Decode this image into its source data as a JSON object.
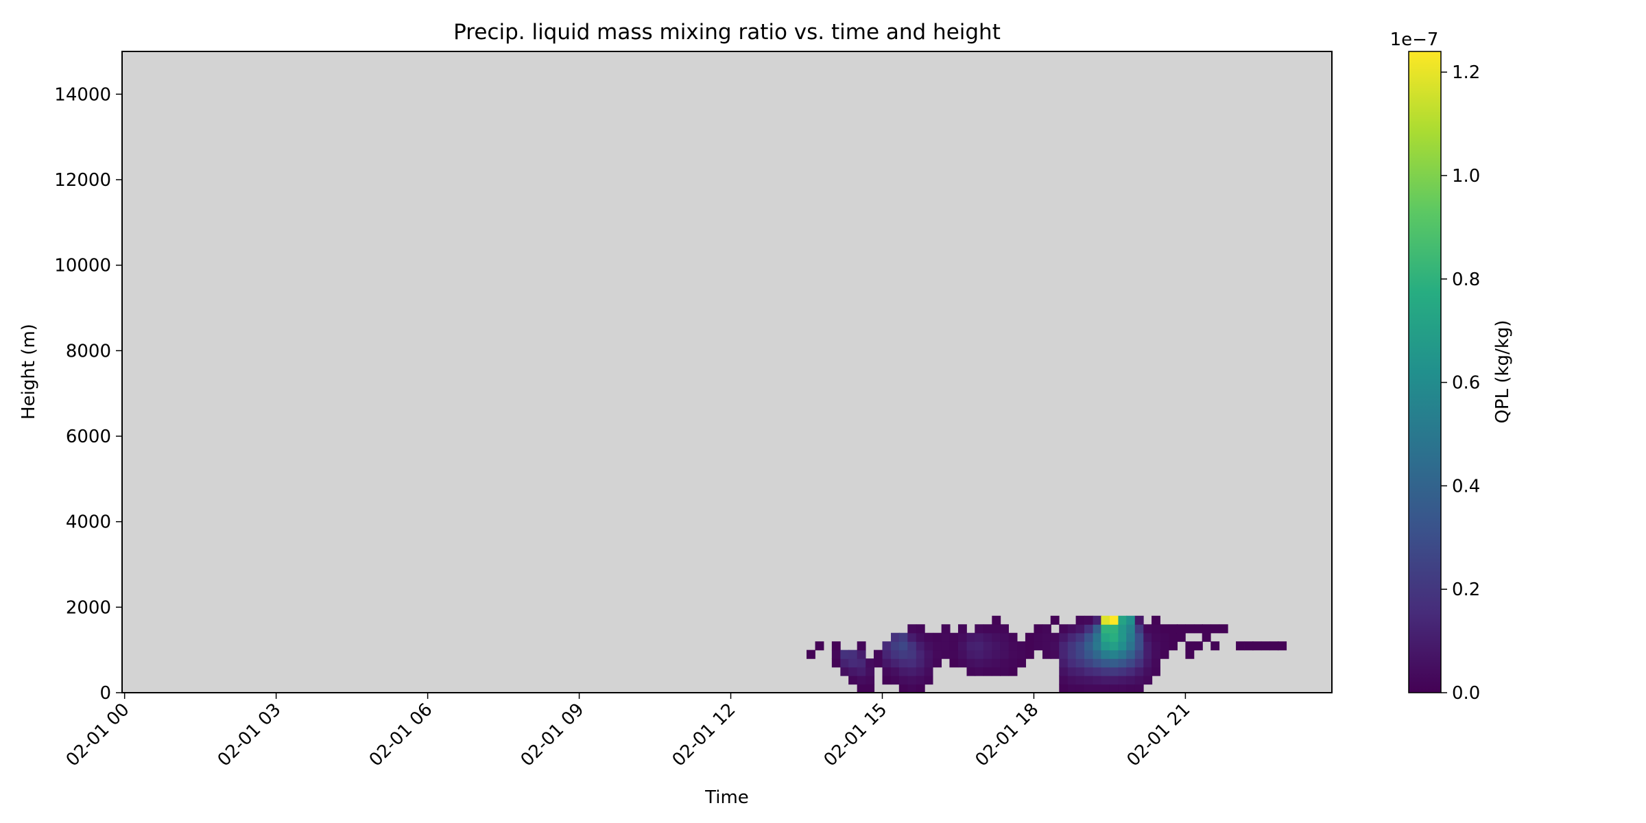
{
  "chart_data": {
    "type": "heatmap",
    "title": "Precip. liquid mass mixing ratio vs. time and height",
    "xlabel": "Time",
    "ylabel": "Height (m)",
    "x_ticks": [
      "02-01 00",
      "02-01 03",
      "02-01 06",
      "02-01 09",
      "02-01 12",
      "02-01 15",
      "02-01 18",
      "02-01 21"
    ],
    "x_tick_hours": [
      0,
      3,
      6,
      9,
      12,
      15,
      18,
      21
    ],
    "x_range_hours": [
      -0.05,
      23.9
    ],
    "y_ticks": [
      0,
      2000,
      4000,
      6000,
      8000,
      10000,
      12000,
      14000
    ],
    "ylim": [
      0,
      15000
    ],
    "background_color": "#d3d3d3",
    "grid": false,
    "colorbar": {
      "label": "QPL (kg/kg)",
      "colormap": "viridis",
      "range": [
        0,
        1.24e-07
      ],
      "ticks": [
        0,
        0.2,
        0.4,
        0.6,
        0.8,
        1.0,
        1.2
      ],
      "tick_labels": [
        "0.0",
        "0.2",
        "0.4",
        "0.6",
        "0.8",
        "1.0",
        "1.2"
      ],
      "offset_text": "1e−7"
    },
    "cell_size": {
      "hours": 0.1667,
      "meters": 200
    },
    "units": {
      "hours": "h",
      "height": "m",
      "value": "1e-7 kg/kg"
    },
    "cells": [
      [
        13.5,
        800,
        0.01
      ],
      [
        13.67,
        1000,
        0.01
      ],
      [
        14.0,
        600,
        0.01
      ],
      [
        14.0,
        800,
        0.02
      ],
      [
        14.0,
        1000,
        0.01
      ],
      [
        14.17,
        400,
        0.05
      ],
      [
        14.17,
        600,
        0.12
      ],
      [
        14.17,
        800,
        0.18
      ],
      [
        14.33,
        200,
        0.02
      ],
      [
        14.33,
        400,
        0.08
      ],
      [
        14.33,
        600,
        0.15
      ],
      [
        14.33,
        800,
        0.17
      ],
      [
        14.5,
        0,
        0.01
      ],
      [
        14.5,
        200,
        0.04
      ],
      [
        14.5,
        400,
        0.1
      ],
      [
        14.5,
        600,
        0.14
      ],
      [
        14.5,
        800,
        0.1
      ],
      [
        14.5,
        1000,
        0.02
      ],
      [
        14.67,
        0,
        0.01
      ],
      [
        14.67,
        200,
        0.03
      ],
      [
        14.67,
        400,
        0.05
      ],
      [
        14.67,
        600,
        0.04
      ],
      [
        14.83,
        600,
        0.02
      ],
      [
        14.83,
        800,
        0.02
      ],
      [
        15.0,
        200,
        0.01
      ],
      [
        15.0,
        400,
        0.03
      ],
      [
        15.0,
        600,
        0.08
      ],
      [
        15.0,
        800,
        0.13
      ],
      [
        15.0,
        1000,
        0.15
      ],
      [
        15.17,
        200,
        0.02
      ],
      [
        15.17,
        400,
        0.05
      ],
      [
        15.17,
        600,
        0.12
      ],
      [
        15.17,
        800,
        0.19
      ],
      [
        15.17,
        1000,
        0.23
      ],
      [
        15.17,
        1200,
        0.18
      ],
      [
        15.33,
        0,
        0.01
      ],
      [
        15.33,
        200,
        0.04
      ],
      [
        15.33,
        400,
        0.09
      ],
      [
        15.33,
        600,
        0.15
      ],
      [
        15.33,
        800,
        0.22
      ],
      [
        15.33,
        1000,
        0.27
      ],
      [
        15.33,
        1200,
        0.22
      ],
      [
        15.5,
        0,
        0.02
      ],
      [
        15.5,
        200,
        0.05
      ],
      [
        15.5,
        400,
        0.1
      ],
      [
        15.5,
        600,
        0.16
      ],
      [
        15.5,
        800,
        0.2
      ],
      [
        15.5,
        1000,
        0.19
      ],
      [
        15.5,
        1200,
        0.1
      ],
      [
        15.5,
        1400,
        0.03
      ],
      [
        15.67,
        0,
        0.01
      ],
      [
        15.67,
        200,
        0.04
      ],
      [
        15.67,
        400,
        0.08
      ],
      [
        15.67,
        600,
        0.12
      ],
      [
        15.67,
        800,
        0.13
      ],
      [
        15.67,
        1000,
        0.1
      ],
      [
        15.67,
        1200,
        0.05
      ],
      [
        15.67,
        1400,
        0.02
      ],
      [
        15.83,
        200,
        0.02
      ],
      [
        15.83,
        400,
        0.04
      ],
      [
        15.83,
        600,
        0.06
      ],
      [
        15.83,
        800,
        0.07
      ],
      [
        15.83,
        1000,
        0.05
      ],
      [
        15.83,
        1200,
        0.03
      ],
      [
        16.0,
        600,
        0.02
      ],
      [
        16.0,
        800,
        0.03
      ],
      [
        16.0,
        1000,
        0.03
      ],
      [
        16.0,
        1200,
        0.02
      ],
      [
        16.17,
        800,
        0.02
      ],
      [
        16.17,
        1000,
        0.03
      ],
      [
        16.17,
        1200,
        0.03
      ],
      [
        16.17,
        1400,
        0.02
      ],
      [
        16.33,
        600,
        0.01
      ],
      [
        16.33,
        800,
        0.02
      ],
      [
        16.33,
        1000,
        0.02
      ],
      [
        16.33,
        1200,
        0.02
      ],
      [
        16.5,
        600,
        0.03
      ],
      [
        16.5,
        800,
        0.05
      ],
      [
        16.5,
        1000,
        0.06
      ],
      [
        16.5,
        1200,
        0.04
      ],
      [
        16.5,
        1400,
        0.02
      ],
      [
        16.67,
        400,
        0.02
      ],
      [
        16.67,
        600,
        0.05
      ],
      [
        16.67,
        800,
        0.09
      ],
      [
        16.67,
        1000,
        0.11
      ],
      [
        16.67,
        1200,
        0.08
      ],
      [
        16.83,
        400,
        0.03
      ],
      [
        16.83,
        600,
        0.06
      ],
      [
        16.83,
        800,
        0.1
      ],
      [
        16.83,
        1000,
        0.12
      ],
      [
        16.83,
        1200,
        0.09
      ],
      [
        16.83,
        1400,
        0.03
      ],
      [
        17.0,
        400,
        0.02
      ],
      [
        17.0,
        600,
        0.05
      ],
      [
        17.0,
        800,
        0.08
      ],
      [
        17.0,
        1000,
        0.09
      ],
      [
        17.0,
        1200,
        0.07
      ],
      [
        17.0,
        1400,
        0.02
      ],
      [
        17.17,
        400,
        0.02
      ],
      [
        17.17,
        600,
        0.04
      ],
      [
        17.17,
        800,
        0.06
      ],
      [
        17.17,
        1000,
        0.07
      ],
      [
        17.17,
        1200,
        0.05
      ],
      [
        17.17,
        1400,
        0.02
      ],
      [
        17.17,
        1600,
        0.01
      ],
      [
        17.33,
        400,
        0.02
      ],
      [
        17.33,
        600,
        0.03
      ],
      [
        17.33,
        800,
        0.05
      ],
      [
        17.33,
        1000,
        0.05
      ],
      [
        17.33,
        1200,
        0.04
      ],
      [
        17.33,
        1400,
        0.02
      ],
      [
        17.5,
        400,
        0.01
      ],
      [
        17.5,
        600,
        0.02
      ],
      [
        17.5,
        800,
        0.03
      ],
      [
        17.5,
        1000,
        0.03
      ],
      [
        17.5,
        1200,
        0.02
      ],
      [
        17.67,
        600,
        0.01
      ],
      [
        17.67,
        800,
        0.02
      ],
      [
        17.67,
        1000,
        0.02
      ],
      [
        17.83,
        800,
        0.01
      ],
      [
        17.83,
        1000,
        0.01
      ],
      [
        17.83,
        1200,
        0.01
      ],
      [
        18.0,
        1000,
        0.02
      ],
      [
        18.0,
        1200,
        0.02
      ],
      [
        18.0,
        1400,
        0.01
      ],
      [
        18.17,
        800,
        0.02
      ],
      [
        18.17,
        1000,
        0.03
      ],
      [
        18.17,
        1200,
        0.03
      ],
      [
        18.17,
        1400,
        0.02
      ],
      [
        18.33,
        800,
        0.03
      ],
      [
        18.33,
        1000,
        0.04
      ],
      [
        18.33,
        1200,
        0.03
      ],
      [
        18.33,
        1600,
        0.01
      ],
      [
        18.5,
        0,
        0.01
      ],
      [
        18.5,
        200,
        0.03
      ],
      [
        18.5,
        400,
        0.06
      ],
      [
        18.5,
        600,
        0.1
      ],
      [
        18.5,
        800,
        0.13
      ],
      [
        18.5,
        1000,
        0.13
      ],
      [
        18.5,
        1200,
        0.08
      ],
      [
        18.5,
        1400,
        0.02
      ],
      [
        18.67,
        0,
        0.02
      ],
      [
        18.67,
        200,
        0.05
      ],
      [
        18.67,
        400,
        0.1
      ],
      [
        18.67,
        600,
        0.16
      ],
      [
        18.67,
        800,
        0.2
      ],
      [
        18.67,
        1000,
        0.2
      ],
      [
        18.67,
        1200,
        0.14
      ],
      [
        18.67,
        1400,
        0.05
      ],
      [
        18.83,
        0,
        0.02
      ],
      [
        18.83,
        200,
        0.06
      ],
      [
        18.83,
        400,
        0.12
      ],
      [
        18.83,
        600,
        0.2
      ],
      [
        18.83,
        800,
        0.26
      ],
      [
        18.83,
        1000,
        0.27
      ],
      [
        18.83,
        1200,
        0.2
      ],
      [
        18.83,
        1400,
        0.08
      ],
      [
        18.83,
        1600,
        0.02
      ],
      [
        19.0,
        0,
        0.03
      ],
      [
        19.0,
        200,
        0.07
      ],
      [
        19.0,
        400,
        0.15
      ],
      [
        19.0,
        600,
        0.25
      ],
      [
        19.0,
        800,
        0.34
      ],
      [
        19.0,
        1000,
        0.38
      ],
      [
        19.0,
        1200,
        0.32
      ],
      [
        19.0,
        1400,
        0.18
      ],
      [
        19.0,
        1600,
        0.03
      ],
      [
        19.17,
        0,
        0.03
      ],
      [
        19.17,
        200,
        0.08
      ],
      [
        19.17,
        400,
        0.17
      ],
      [
        19.17,
        600,
        0.3
      ],
      [
        19.17,
        800,
        0.42
      ],
      [
        19.17,
        1000,
        0.5
      ],
      [
        19.17,
        1200,
        0.48
      ],
      [
        19.17,
        1400,
        0.38
      ],
      [
        19.17,
        1600,
        0.12
      ],
      [
        19.33,
        0,
        0.03
      ],
      [
        19.33,
        200,
        0.09
      ],
      [
        19.33,
        400,
        0.2
      ],
      [
        19.33,
        600,
        0.35
      ],
      [
        19.33,
        800,
        0.52
      ],
      [
        19.33,
        1000,
        0.66
      ],
      [
        19.33,
        1200,
        0.74
      ],
      [
        19.33,
        1400,
        0.8
      ],
      [
        19.33,
        1600,
        1.18
      ],
      [
        19.5,
        0,
        0.03
      ],
      [
        19.5,
        200,
        0.09
      ],
      [
        19.5,
        400,
        0.21
      ],
      [
        19.5,
        600,
        0.37
      ],
      [
        19.5,
        800,
        0.55
      ],
      [
        19.5,
        1000,
        0.7
      ],
      [
        19.5,
        1200,
        0.78
      ],
      [
        19.5,
        1400,
        0.8
      ],
      [
        19.5,
        1600,
        1.24
      ],
      [
        19.67,
        0,
        0.03
      ],
      [
        19.67,
        200,
        0.08
      ],
      [
        19.67,
        400,
        0.19
      ],
      [
        19.67,
        600,
        0.33
      ],
      [
        19.67,
        800,
        0.49
      ],
      [
        19.67,
        1000,
        0.61
      ],
      [
        19.67,
        1200,
        0.66
      ],
      [
        19.67,
        1400,
        0.66
      ],
      [
        19.67,
        1600,
        0.72
      ],
      [
        19.83,
        0,
        0.02
      ],
      [
        19.83,
        200,
        0.07
      ],
      [
        19.83,
        400,
        0.15
      ],
      [
        19.83,
        600,
        0.27
      ],
      [
        19.83,
        800,
        0.39
      ],
      [
        19.83,
        1000,
        0.48
      ],
      [
        19.83,
        1200,
        0.52
      ],
      [
        19.83,
        1400,
        0.55
      ],
      [
        19.83,
        1600,
        0.62
      ],
      [
        20.0,
        0,
        0.02
      ],
      [
        20.0,
        200,
        0.05
      ],
      [
        20.0,
        400,
        0.1
      ],
      [
        20.0,
        600,
        0.18
      ],
      [
        20.0,
        800,
        0.25
      ],
      [
        20.0,
        1000,
        0.3
      ],
      [
        20.0,
        1200,
        0.3
      ],
      [
        20.0,
        1400,
        0.22
      ],
      [
        20.0,
        1600,
        0.08
      ],
      [
        20.17,
        200,
        0.03
      ],
      [
        20.17,
        400,
        0.05
      ],
      [
        20.17,
        600,
        0.08
      ],
      [
        20.17,
        800,
        0.1
      ],
      [
        20.17,
        1000,
        0.1
      ],
      [
        20.17,
        1200,
        0.07
      ],
      [
        20.17,
        1400,
        0.03
      ],
      [
        20.33,
        400,
        0.02
      ],
      [
        20.33,
        600,
        0.03
      ],
      [
        20.33,
        800,
        0.04
      ],
      [
        20.33,
        1000,
        0.04
      ],
      [
        20.33,
        1200,
        0.03
      ],
      [
        20.33,
        1400,
        0.02
      ],
      [
        20.33,
        1600,
        0.01
      ],
      [
        20.5,
        800,
        0.01
      ],
      [
        20.5,
        1000,
        0.02
      ],
      [
        20.5,
        1200,
        0.02
      ],
      [
        20.5,
        1400,
        0.01
      ],
      [
        20.67,
        1000,
        0.01
      ],
      [
        20.67,
        1200,
        0.01
      ],
      [
        20.67,
        1400,
        0.01
      ],
      [
        20.83,
        1200,
        0.01
      ],
      [
        20.83,
        1400,
        0.01
      ],
      [
        21.0,
        1000,
        0.01
      ],
      [
        21.0,
        1400,
        0.01
      ],
      [
        21.17,
        1000,
        0.01
      ],
      [
        21.17,
        1400,
        0.01
      ],
      [
        21.33,
        1200,
        0.01
      ],
      [
        21.33,
        1400,
        0.01
      ],
      [
        21.5,
        1000,
        0.01
      ],
      [
        21.5,
        1400,
        0.01
      ],
      [
        21.67,
        1400,
        0.01
      ],
      [
        21.0,
        800,
        0.01
      ],
      [
        22.0,
        1000,
        0.01
      ],
      [
        22.17,
        1000,
        0.01
      ],
      [
        22.33,
        1000,
        0.01
      ],
      [
        22.5,
        1000,
        0.01
      ],
      [
        22.67,
        1000,
        0.01
      ],
      [
        22.83,
        1000,
        0.01
      ]
    ]
  }
}
